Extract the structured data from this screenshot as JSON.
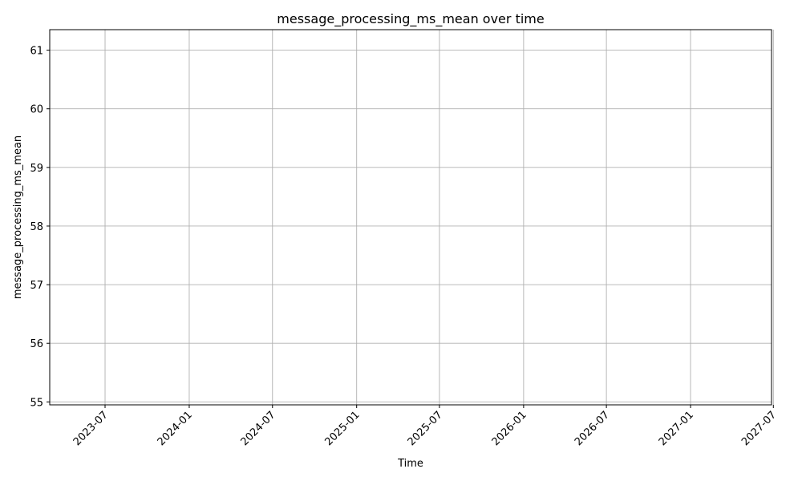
{
  "chart_data": {
    "type": "line",
    "title": "message_processing_ms_mean over time",
    "xlabel": "Time",
    "ylabel": "message_processing_ms_mean",
    "x_ticks": [
      "2023-07",
      "2024-01",
      "2024-07",
      "2025-01",
      "2025-07",
      "2026-01",
      "2026-07",
      "2027-01",
      "2027-07"
    ],
    "y_ticks": [
      55,
      56,
      57,
      58,
      59,
      60,
      61
    ],
    "xlim": [
      "2023-03-02",
      "2027-06-27"
    ],
    "ylim": [
      54.95,
      61.35
    ],
    "grid": true,
    "series": [],
    "colors": {
      "grid": "#b0b0b0",
      "axis": "#000000",
      "background": "#ffffff"
    }
  }
}
